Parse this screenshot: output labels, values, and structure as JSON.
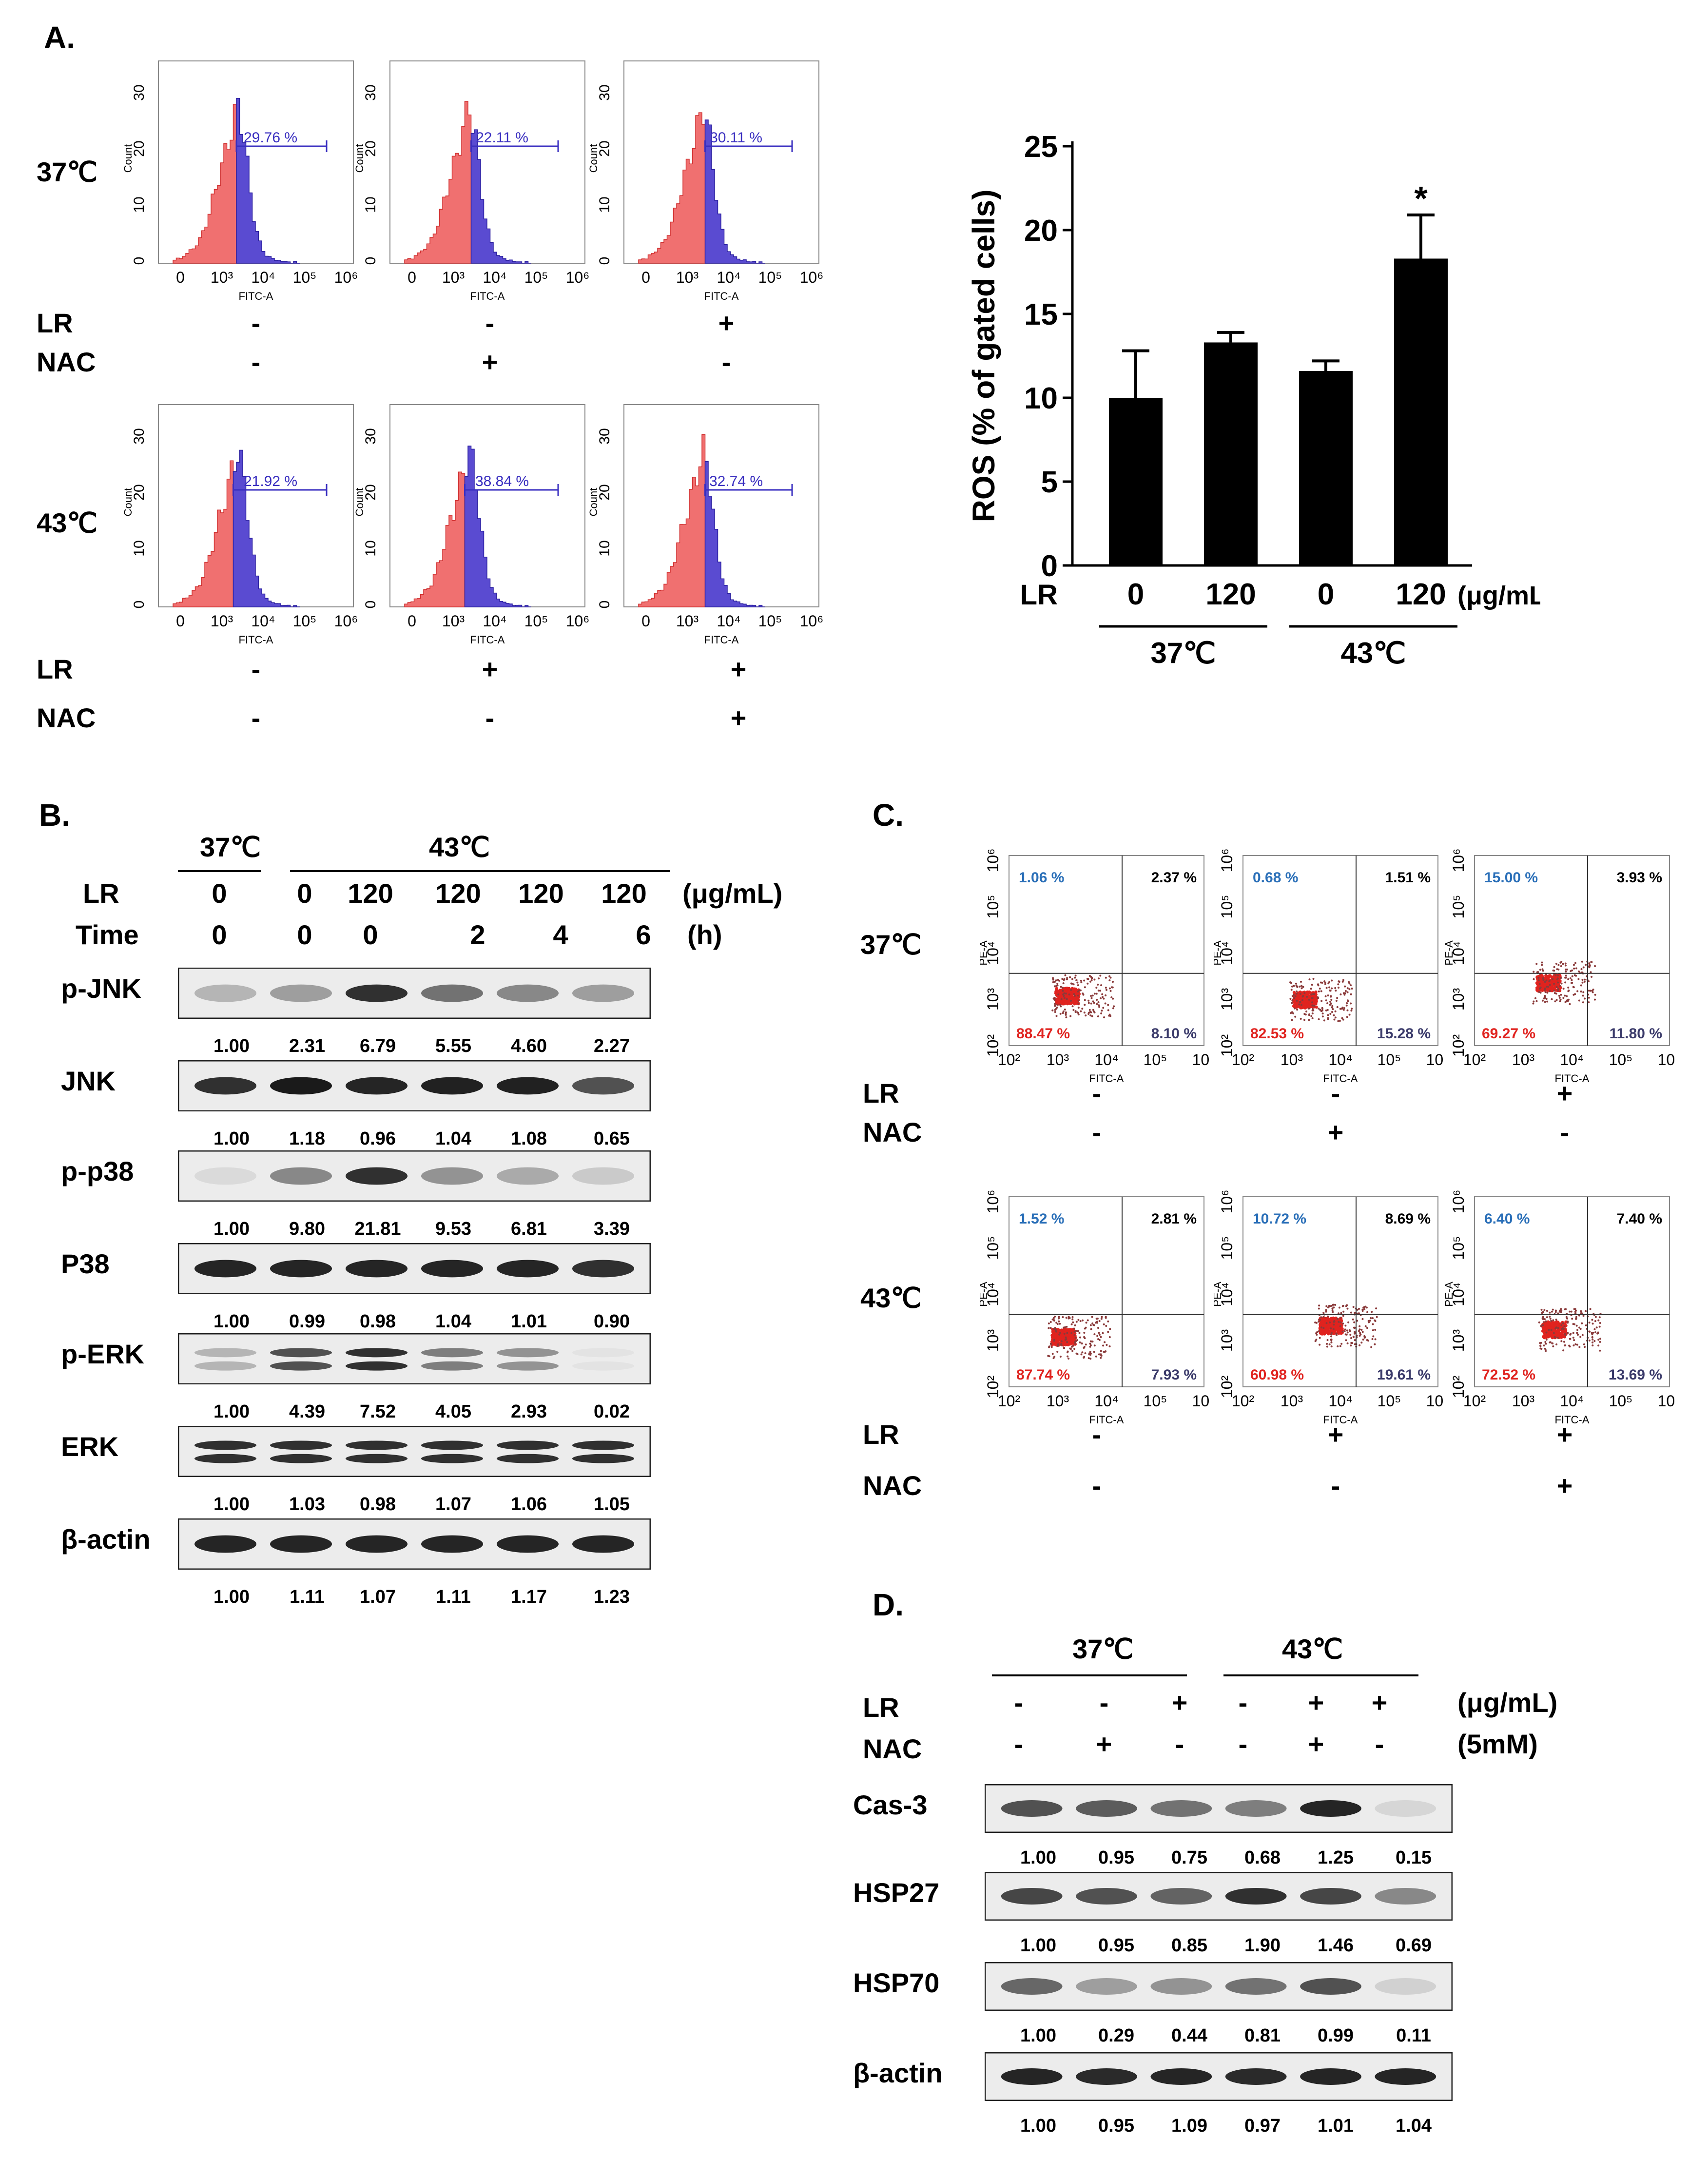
{
  "panelA": {
    "letter": "A.",
    "row_labels": [
      "37℃",
      "43℃"
    ],
    "axis": {
      "x_label": "FITC-A",
      "y_label": "Count",
      "x_ticks": [
        "0",
        "10³",
        "10⁴",
        "10⁵",
        "10⁶"
      ],
      "y_ticks": [
        "0",
        "10",
        "20",
        "30"
      ]
    },
    "histograms": [
      {
        "percent": "29.76 %"
      },
      {
        "percent": "22.11 %"
      },
      {
        "percent": "30.11 %"
      },
      {
        "percent": "21.92 %"
      },
      {
        "percent": "38.84 %"
      },
      {
        "percent": "32.74 %"
      }
    ],
    "condition_labels": {
      "lr": "LR",
      "nac": "NAC"
    },
    "top_signs": {
      "lr": [
        "-",
        "-",
        "+"
      ],
      "nac": [
        "-",
        "+",
        "-"
      ]
    },
    "bottom_signs": {
      "lr": [
        "-",
        "+",
        "+"
      ],
      "nac": [
        "-",
        "-",
        "+"
      ]
    }
  },
  "chart_data": {
    "type": "bar",
    "categories": [
      "0",
      "120",
      "0",
      "120"
    ],
    "values": [
      10.0,
      13.3,
      11.6,
      18.3
    ],
    "errors": [
      2.8,
      0.6,
      0.6,
      2.6
    ],
    "significance": [
      "",
      "",
      "",
      "*"
    ],
    "ylabel": "ROS (% of gated cells)",
    "ylim": [
      0,
      25
    ],
    "yticks": [
      "0",
      "5",
      "10",
      "15",
      "20",
      "25"
    ],
    "x_prefix": "LR",
    "x_unit": "(μg/mL)",
    "groups": [
      "37℃",
      "43℃"
    ]
  },
  "panelB": {
    "letter": "B.",
    "temp_left": "37℃",
    "temp_right": "43℃",
    "lr_label": "LR",
    "time_label": "Time",
    "lr_values": [
      "0",
      "0",
      "120",
      "120",
      "120",
      "120"
    ],
    "time_values": [
      "0",
      "0",
      "0",
      "2",
      "4",
      "6"
    ],
    "lr_unit": "(μg/mL)",
    "time_unit": "(h)",
    "blots": [
      {
        "label": "p-JNK",
        "quant": [
          "1.00",
          "2.31",
          "6.79",
          "5.55",
          "4.60",
          "2.27"
        ]
      },
      {
        "label": "JNK",
        "quant": [
          "1.00",
          "1.18",
          "0.96",
          "1.04",
          "1.08",
          "0.65"
        ]
      },
      {
        "label": "p-p38",
        "quant": [
          "1.00",
          "9.80",
          "21.81",
          "9.53",
          "6.81",
          "3.39"
        ]
      },
      {
        "label": "P38",
        "quant": [
          "1.00",
          "0.99",
          "0.98",
          "1.04",
          "1.01",
          "0.90"
        ]
      },
      {
        "label": "p-ERK",
        "quant": [
          "1.00",
          "4.39",
          "7.52",
          "4.05",
          "2.93",
          "0.02"
        ]
      },
      {
        "label": "ERK",
        "quant": [
          "1.00",
          "1.03",
          "0.98",
          "1.07",
          "1.06",
          "1.05"
        ]
      },
      {
        "label": "β-actin",
        "quant": [
          "1.00",
          "1.11",
          "1.07",
          "1.11",
          "1.17",
          "1.23"
        ]
      }
    ]
  },
  "panelC": {
    "letter": "C.",
    "row_labels": [
      "37℃",
      "43℃"
    ],
    "axis": {
      "x_label": "FITC-A",
      "y_label": "PE-A",
      "ticks": [
        "10²",
        "10³",
        "10⁴",
        "10⁵",
        "10⁶"
      ]
    },
    "plots": [
      {
        "ul": "1.06 %",
        "ur": "2.37 %",
        "ll": "88.47 %",
        "lr": "8.10 %"
      },
      {
        "ul": "0.68 %",
        "ur": "1.51 %",
        "ll": "82.53 %",
        "lr": "15.28 %"
      },
      {
        "ul": "15.00 %",
        "ur": "3.93 %",
        "ll": "69.27 %",
        "lr": "11.80 %"
      },
      {
        "ul": "1.52 %",
        "ur": "2.81 %",
        "ll": "87.74 %",
        "lr": "7.93 %"
      },
      {
        "ul": "10.72 %",
        "ur": "8.69 %",
        "ll": "60.98 %",
        "lr": "19.61 %"
      },
      {
        "ul": "6.40 %",
        "ur": "7.40 %",
        "ll": "72.52 %",
        "lr": "13.69 %"
      }
    ],
    "condition_labels": {
      "lr": "LR",
      "nac": "NAC"
    },
    "top_signs": {
      "lr": [
        "-",
        "-",
        "+"
      ],
      "nac": [
        "-",
        "+",
        "-"
      ]
    },
    "bottom_signs": {
      "lr": [
        "-",
        "+",
        "+"
      ],
      "nac": [
        "-",
        "-",
        "+"
      ]
    }
  },
  "panelD": {
    "letter": "D.",
    "temp_left": "37℃",
    "temp_right": "43℃",
    "lr_label": "LR",
    "nac_label": "NAC",
    "lr_signs": [
      "-",
      "-",
      "+",
      "-",
      "+",
      "+"
    ],
    "nac_signs": [
      "-",
      "+",
      "-",
      "-",
      "+",
      "-"
    ],
    "lr_unit": "(μg/mL)",
    "nac_unit": "(5mM)",
    "blots": [
      {
        "label": "Cas-3",
        "quant": [
          "1.00",
          "0.95",
          "0.75",
          "0.68",
          "1.25",
          "0.15"
        ]
      },
      {
        "label": "HSP27",
        "quant": [
          "1.00",
          "0.95",
          "0.85",
          "1.90",
          "1.46",
          "0.69"
        ]
      },
      {
        "label": "HSP70",
        "quant": [
          "1.00",
          "0.29",
          "0.44",
          "0.81",
          "0.99",
          "0.11"
        ]
      },
      {
        "label": "β-actin",
        "quant": [
          "1.00",
          "0.95",
          "1.09",
          "0.97",
          "1.01",
          "1.04"
        ]
      }
    ]
  }
}
